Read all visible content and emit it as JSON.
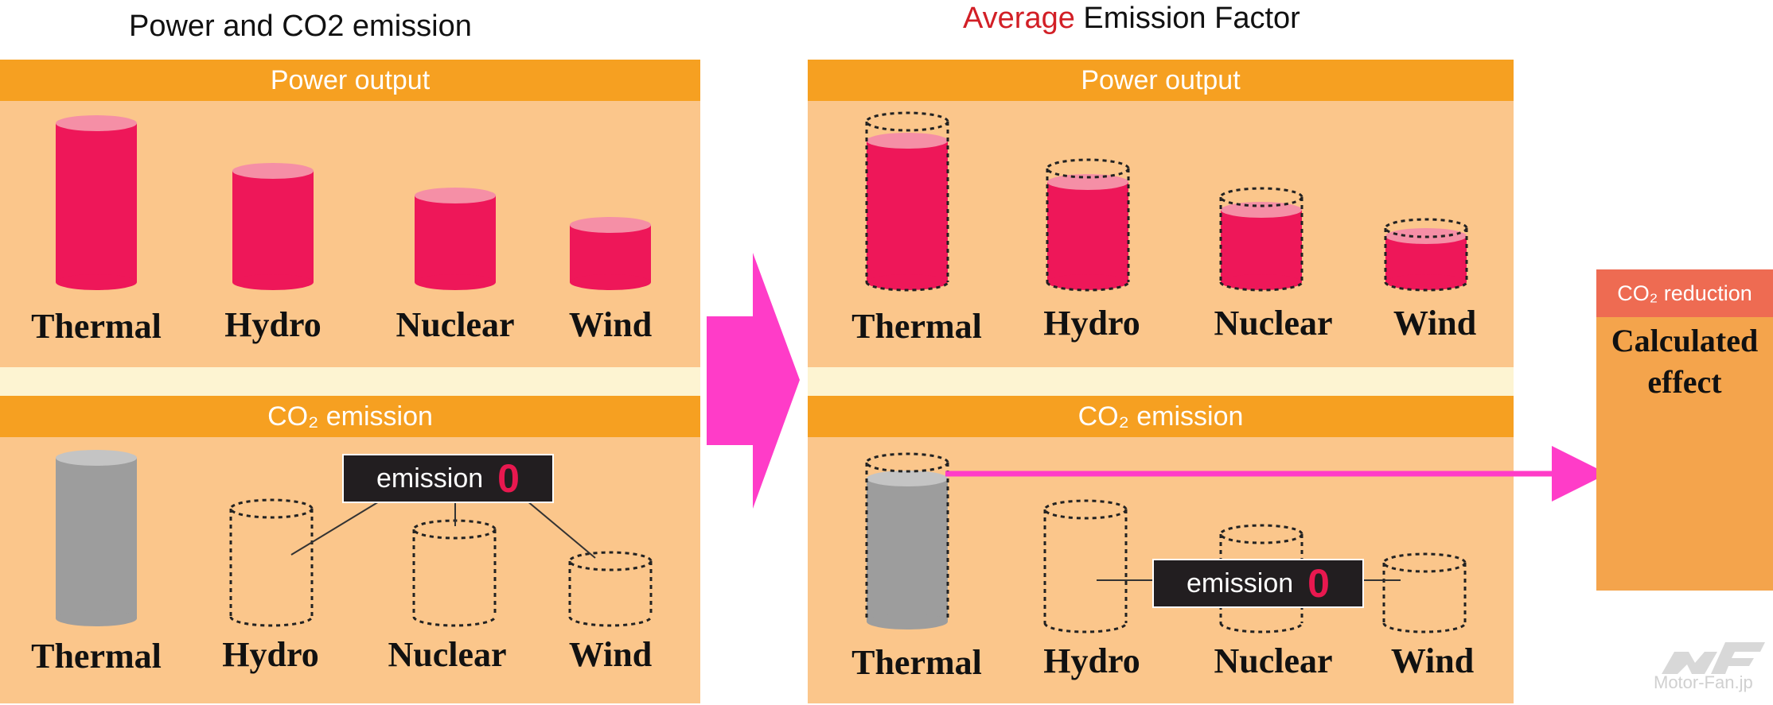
{
  "left_title": "Power and CO2  emission",
  "right_title": {
    "accent": "Average",
    "rest": " Emission Factor"
  },
  "left_panel": {
    "power_header": "Power output",
    "co2_header": "CO₂ emission",
    "power_labels": [
      "Thermal",
      "Hydro",
      "Nuclear",
      "Wind"
    ],
    "co2_labels": [
      "Thermal",
      "Hydro",
      "Nuclear",
      "Wind"
    ],
    "badge": {
      "text": "emission",
      "value": "0"
    }
  },
  "right_panel": {
    "power_header": "Power output",
    "co2_header": "CO₂ emission",
    "power_labels": [
      "Thermal",
      "Hydro",
      "Nuclear",
      "Wind"
    ],
    "co2_labels": [
      "Thermal",
      "Hydro",
      "Nuclear",
      "Wind"
    ],
    "badge": {
      "text": "emission",
      "value": "0"
    }
  },
  "side_box": {
    "header": "CO₂ reduction",
    "body_line1": "Calculated",
    "body_line2": "effect"
  },
  "watermark": "Motor-Fan.jp",
  "colors": {
    "panel_bg": "#fbc68b",
    "header_bar": "#f6a021",
    "separator": "#fdf4d2",
    "power_cylinder": "#ee1759",
    "co2_cylinder": "#9d9d9d",
    "arrow": "#ff3cc8",
    "badge_bg": "#221e20",
    "badge_zero": "#e8184f",
    "accent_title": "#d21f26"
  }
}
